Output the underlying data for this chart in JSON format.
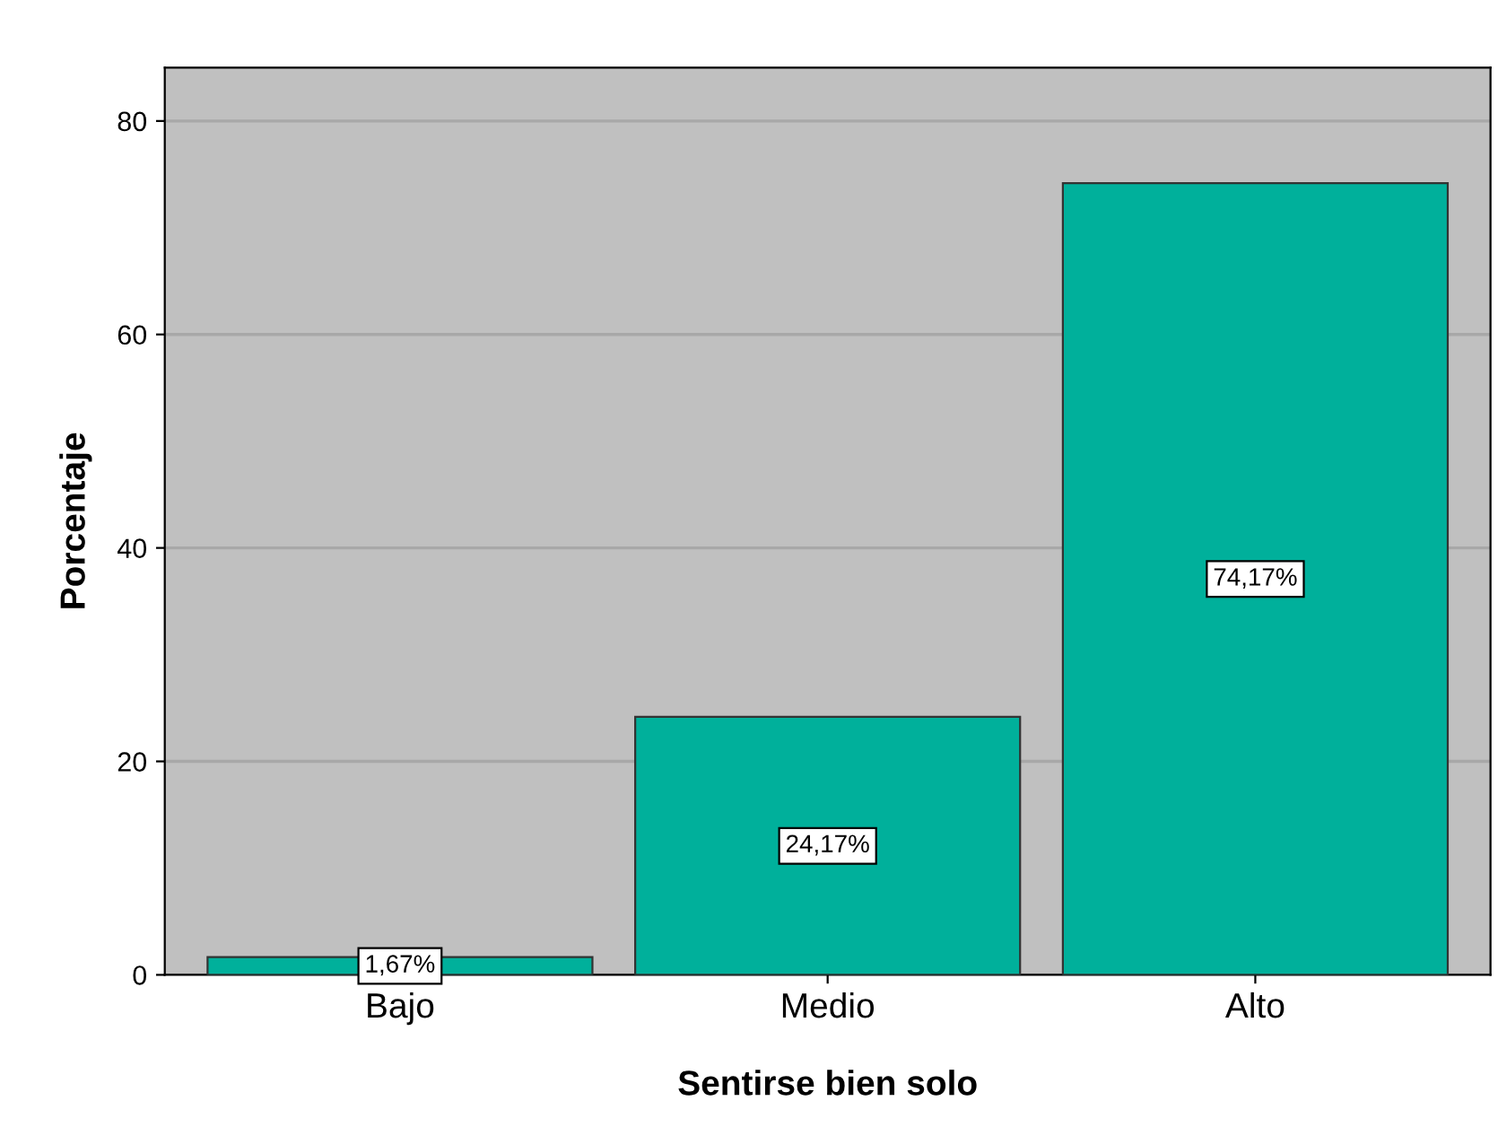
{
  "chart_data": {
    "type": "bar",
    "xlabel": "Sentirse bien solo",
    "ylabel": "Porcentaje",
    "categories": [
      "Bajo",
      "Medio",
      "Alto"
    ],
    "values": [
      1.67,
      24.17,
      74.17
    ],
    "value_labels": [
      "1,67%",
      "24,17%",
      "74,17%"
    ],
    "color": "#00b09b",
    "ylim": [
      0,
      85
    ],
    "yticks": [
      0,
      20,
      40,
      60,
      80
    ],
    "grid": "y",
    "legend": false
  }
}
